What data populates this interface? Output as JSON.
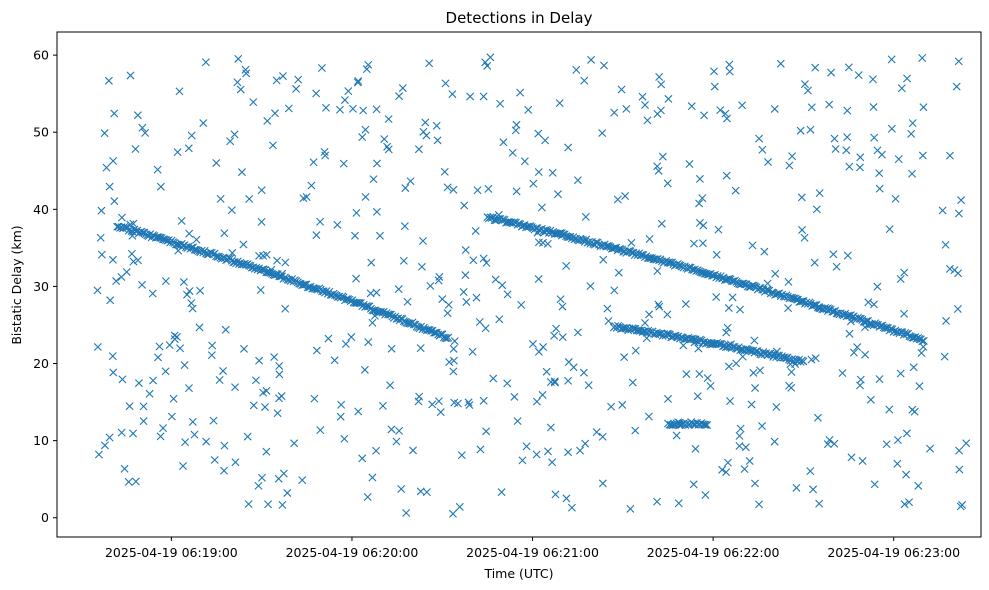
{
  "chart_data": {
    "type": "scatter",
    "title": "Detections in Delay",
    "xlabel": "Time (UTC)",
    "ylabel": "Bistatic Delay (km)",
    "marker": "x",
    "color": "#1f77b4",
    "grid": false,
    "legend": "none",
    "x_axis_type": "datetime",
    "xlim": [
      "2025-04-19 06:18:22",
      "2025-04-19 06:23:29"
    ],
    "ylim": [
      -2.5,
      63
    ],
    "x_ticks": [
      {
        "value": "2025-04-19 06:19:00",
        "label": "2025-04-19 06:19:00"
      },
      {
        "value": "2025-04-19 06:20:00",
        "label": "2025-04-19 06:20:00"
      },
      {
        "value": "2025-04-19 06:21:00",
        "label": "2025-04-19 06:21:00"
      },
      {
        "value": "2025-04-19 06:22:00",
        "label": "2025-04-19 06:22:00"
      },
      {
        "value": "2025-04-19 06:23:00",
        "label": "2025-04-19 06:23:00"
      }
    ],
    "y_ticks": [
      0,
      10,
      20,
      30,
      40,
      50,
      60
    ],
    "x_start": "2025-04-19 06:18:35",
    "x_end": "2025-04-19 06:23:25",
    "tracks": [
      {
        "t_start": "2025-04-19 06:18:42",
        "t_end": "2025-04-19 06:20:32",
        "y_start": 37.8,
        "y_end": 23.3
      },
      {
        "t_start": "2025-04-19 06:20:45",
        "t_end": "2025-04-19 06:23:10",
        "y_start": 39.0,
        "y_end": 23.0
      },
      {
        "t_start": "2025-04-19 06:21:27",
        "t_end": "2025-04-19 06:22:30",
        "y_start": 24.8,
        "y_end": 20.2
      },
      {
        "t_start": "2025-04-19 06:21:45",
        "t_end": "2025-04-19 06:21:58",
        "y_start": 12.2,
        "y_end": 12.2
      }
    ],
    "clutter_range": [
      0.5,
      60
    ]
  }
}
